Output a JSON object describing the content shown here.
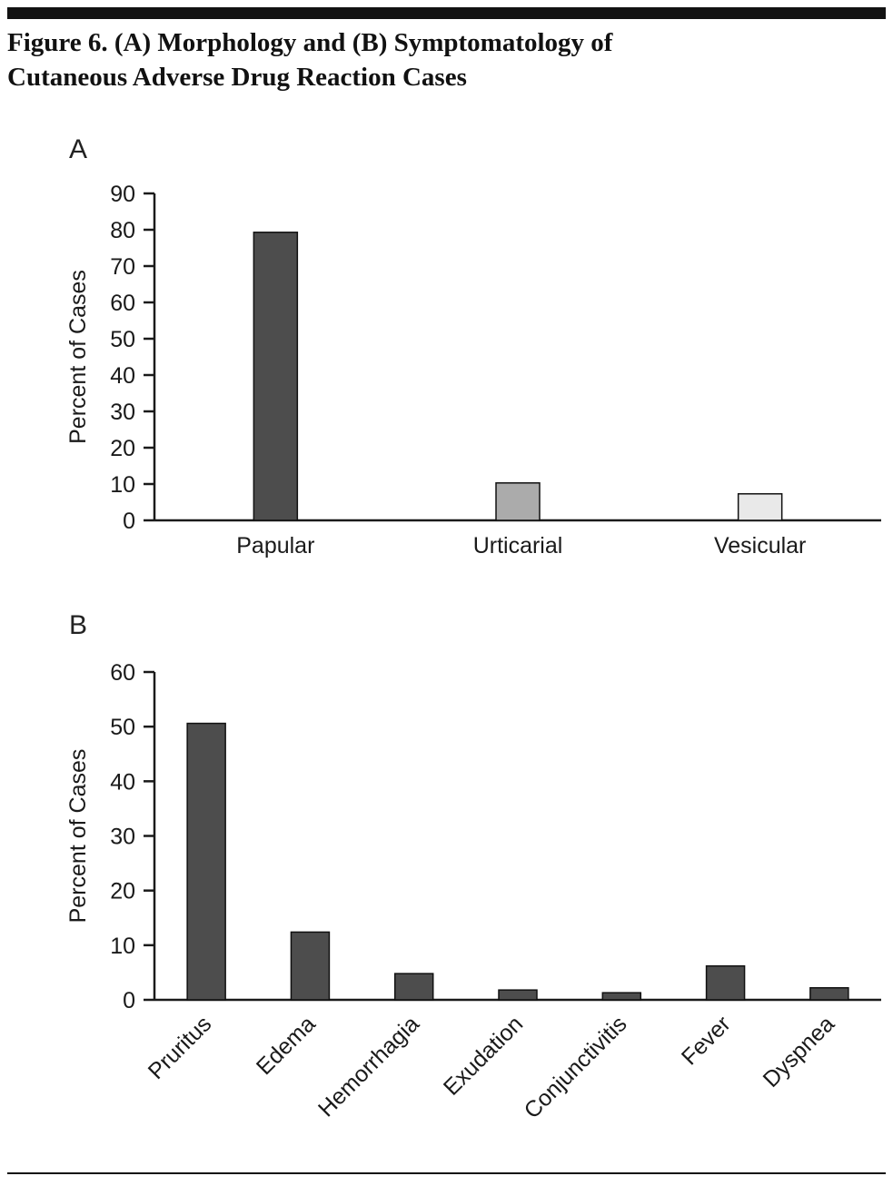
{
  "figure": {
    "title_line1": "Figure 6. (A) Morphology and (B) Symptomatology of",
    "title_line2": "Cutaneous Adverse Drug Reaction Cases"
  },
  "colors": {
    "axis": "#1a1a1a",
    "bar_dark": "#4d4d4d",
    "bar_medium": "#ababab",
    "bar_light": "#e9e9e9",
    "rule": "#121212"
  },
  "chart_data": [
    {
      "type": "bar",
      "panel_label": "A",
      "categories": [
        "Papular",
        "Urticarial",
        "Vesicular"
      ],
      "values": [
        79.3,
        10.3,
        7.3
      ],
      "bar_colors": [
        "#4d4d4d",
        "#ababab",
        "#e9e9e9"
      ],
      "xlabel": "",
      "ylabel": "Percent of Cases",
      "ylim": [
        0,
        90
      ],
      "ytick_step": 10,
      "ytick_labels": [
        "0",
        "10",
        "20",
        "30",
        "40",
        "50",
        "60",
        "70",
        "80",
        "90"
      ],
      "x_label_rotation_deg": 0,
      "grid": false,
      "legend_position": "none"
    },
    {
      "type": "bar",
      "panel_label": "B",
      "categories": [
        "Pruritus",
        "Edema",
        "Hemorrhagia",
        "Exudation",
        "Conjunctivitis",
        "Fever",
        "Dyspnea"
      ],
      "values": [
        50.6,
        12.4,
        4.8,
        1.8,
        1.3,
        6.2,
        2.2
      ],
      "bar_colors": [
        "#4d4d4d",
        "#4d4d4d",
        "#4d4d4d",
        "#4d4d4d",
        "#4d4d4d",
        "#4d4d4d",
        "#4d4d4d"
      ],
      "xlabel": "",
      "ylabel": "Percent of Cases",
      "ylim": [
        0,
        60
      ],
      "ytick_step": 10,
      "ytick_labels": [
        "0",
        "10",
        "20",
        "30",
        "40",
        "50",
        "60"
      ],
      "x_label_rotation_deg": 45,
      "grid": false,
      "legend_position": "none"
    }
  ]
}
